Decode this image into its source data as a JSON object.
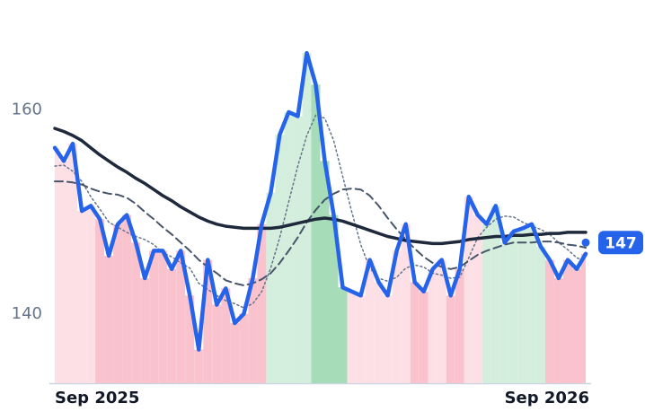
{
  "chart_data": {
    "type": "line",
    "categories": [
      "Sep 2025",
      null,
      null,
      null,
      null,
      null,
      null,
      null,
      null,
      null,
      null,
      null,
      null,
      null,
      null,
      null,
      null,
      null,
      null,
      null,
      null,
      null,
      null,
      null,
      null,
      null,
      null,
      null,
      null,
      null,
      null,
      null,
      null,
      null,
      null,
      null,
      null,
      null,
      null,
      null,
      null,
      null,
      null,
      null,
      null,
      null,
      null,
      null,
      null,
      null,
      null,
      null,
      null,
      null,
      null,
      null,
      null,
      null,
      null,
      "Sep 2026"
    ],
    "ylim": [
      133.2,
      170.8
    ],
    "yticks": [
      140,
      160
    ],
    "area_colors": [
      "#fde0e6",
      "#fde0e6",
      "#fde0e6",
      "#fde0e6",
      "#fde0e6",
      "#f9c2cd",
      "#f9c2cd",
      "#f9c2cd",
      "#f9c2cd",
      "#f9c2cd",
      "#f9c2cd",
      "#f9c2cd",
      "#f9c2cd",
      "#f9c2cd",
      "#f9c2cd",
      "#f9c2cd",
      "#f9c2cd",
      "#f9c2cd",
      "#f9c2cd",
      "#f9c2cd",
      "#f9c2cd",
      "#f9c2cd",
      "#f9c2cd",
      "#f9c2cd",
      "#d3eedc",
      "#d3eedc",
      "#d3eedc",
      "#d3eedc",
      "#d3eedc",
      "#a6dcb8",
      "#a6dcb8",
      "#a6dcb8",
      "#a6dcb8",
      "#fde0e6",
      "#fde0e6",
      "#fde0e6",
      "#fde0e6",
      "#fde0e6",
      "#fde0e6",
      "#fde0e6",
      "#f9c2cd",
      "#f9c2cd",
      "#fde0e6",
      "#fde0e6",
      "#f9c2cd",
      "#f9c2cd",
      "#fde0e6",
      "#fde0e6",
      "#d3eedc",
      "#d3eedc",
      "#d3eedc",
      "#d3eedc",
      "#d3eedc",
      "#d3eedc",
      "#d3eedc",
      "#f9c2cd",
      "#f9c2cd",
      "#f9c2cd",
      "#f9c2cd",
      "#f9c2cd"
    ],
    "series": [
      {
        "color": "#2563eb",
        "style": "solid",
        "width": 4.5,
        "values": [
          156.3,
          155.0,
          156.7,
          150.1,
          150.6,
          149.3,
          145.7,
          148.8,
          149.7,
          147.0,
          143.5,
          146.2,
          146.2,
          144.4,
          146.2,
          141.8,
          136.5,
          145.3,
          140.9,
          142.5,
          139.1,
          140.0,
          143.5,
          148.8,
          151.9,
          157.6,
          159.8,
          159.4,
          165.6,
          162.5,
          155.0,
          149.7,
          142.6,
          142.2,
          141.8,
          145.3,
          143.1,
          141.8,
          146.2,
          148.8,
          143.1,
          142.2,
          144.4,
          145.3,
          141.8,
          144.4,
          151.5,
          149.7,
          148.8,
          150.6,
          147.0,
          148.1,
          148.4,
          148.8,
          146.6,
          145.3,
          143.5,
          145.3,
          144.4,
          145.9
        ]
      },
      {
        "color": "#1e293b",
        "style": "solid",
        "width": 3.5,
        "values": [
          158.2,
          157.9,
          157.5,
          157.0,
          156.3,
          155.6,
          155.0,
          154.4,
          153.9,
          153.3,
          152.8,
          152.2,
          151.6,
          151.1,
          150.5,
          150.0,
          149.5,
          149.1,
          148.8,
          148.6,
          148.5,
          148.4,
          148.4,
          148.4,
          148.4,
          148.5,
          148.7,
          148.9,
          149.1,
          149.3,
          149.4,
          149.3,
          149.1,
          148.8,
          148.5,
          148.2,
          147.9,
          147.6,
          147.4,
          147.2,
          147.1,
          147.0,
          146.9,
          146.9,
          147.0,
          147.1,
          147.3,
          147.4,
          147.5,
          147.6,
          147.6,
          147.7,
          147.7,
          147.8,
          147.8,
          147.9,
          147.9,
          148.0,
          148.0,
          148.0
        ]
      },
      {
        "color": "#475569",
        "style": "dashed",
        "width": 2,
        "values": [
          153.0,
          153.0,
          152.9,
          152.7,
          152.3,
          152.0,
          151.8,
          151.7,
          151.4,
          150.8,
          150.0,
          149.3,
          148.5,
          147.8,
          147.0,
          146.2,
          145.3,
          144.6,
          144.0,
          143.3,
          143.0,
          142.8,
          143.0,
          143.4,
          144.0,
          145.0,
          146.2,
          147.5,
          149.0,
          150.2,
          151.2,
          151.8,
          152.2,
          152.3,
          152.2,
          151.6,
          150.6,
          149.4,
          148.3,
          147.3,
          146.4,
          145.6,
          145.0,
          144.6,
          144.4,
          144.6,
          145.2,
          145.8,
          146.2,
          146.5,
          146.8,
          147.0,
          147.0,
          147.0,
          147.1,
          147.1,
          147.0,
          146.8,
          146.7,
          146.5
        ]
      },
      {
        "color": "#64748b",
        "style": "dotted",
        "width": 1.5,
        "values": [
          154.5,
          154.6,
          154.0,
          153.0,
          151.5,
          150.3,
          149.0,
          148.5,
          148.0,
          147.6,
          147.3,
          146.8,
          146.0,
          145.6,
          145.0,
          144.5,
          143.0,
          142.4,
          141.8,
          141.3,
          141.0,
          140.6,
          141.0,
          142.2,
          144.5,
          147.5,
          151.0,
          154.5,
          157.5,
          159.5,
          159.2,
          157.0,
          153.5,
          150.0,
          146.8,
          144.5,
          143.5,
          143.2,
          143.6,
          144.5,
          144.8,
          144.6,
          144.0,
          143.8,
          143.5,
          143.6,
          145.5,
          147.5,
          148.5,
          149.3,
          149.6,
          149.5,
          149.0,
          148.6,
          148.3,
          147.8,
          147.0,
          146.3,
          145.5,
          145.2
        ]
      }
    ],
    "current_price": 147,
    "current_color": "#2563eb"
  }
}
